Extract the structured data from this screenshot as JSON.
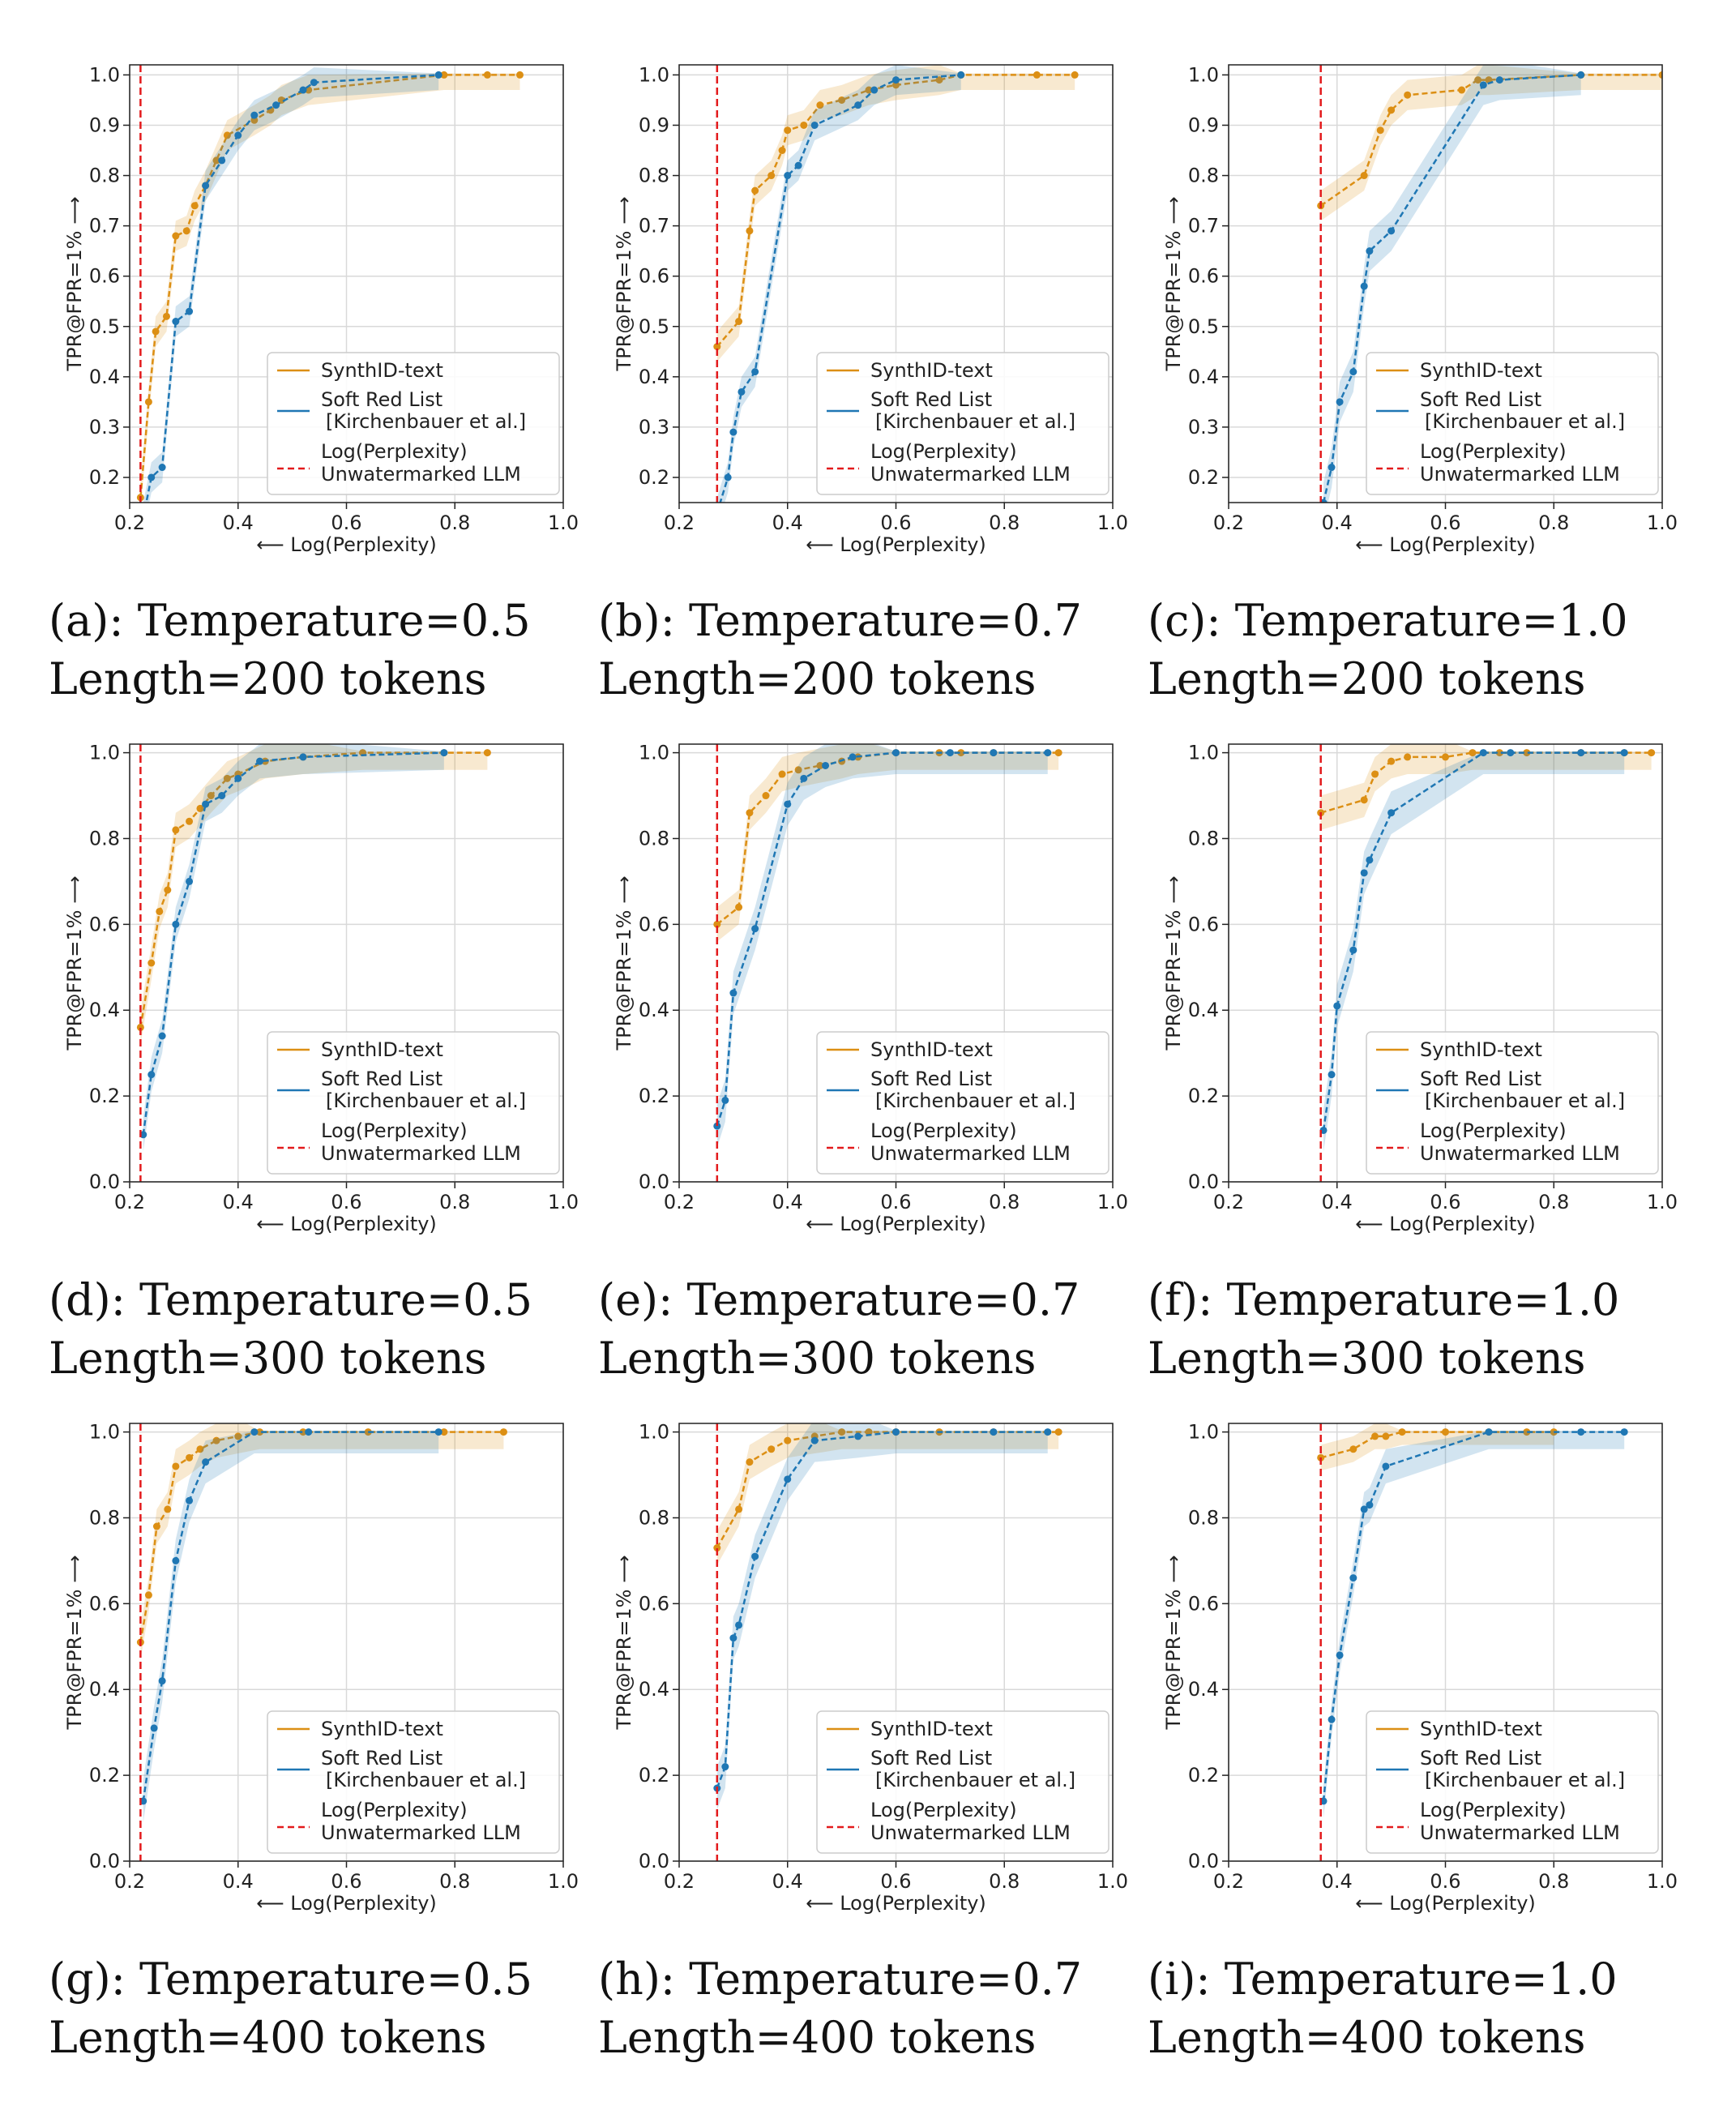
{
  "colors": {
    "synthid": "#dc8f14",
    "soft_red": "#1f77b4",
    "baseline": "#e31a1c",
    "grid": "#d9d9d9"
  },
  "legend": {
    "synthid": "SynthID-text",
    "soft_red": [
      "Soft Red List",
      "[Kirchenbauer et al.]"
    ],
    "baseline": [
      "Log(Perplexity)",
      "Unwatermarked LLM"
    ]
  },
  "chart_data": [
    {
      "type": "line",
      "caption": [
        "(a): Temperature=0.5",
        "Length=200 tokens"
      ],
      "xlabel": "⟵ Log(Perplexity)",
      "ylabel": "TPR@FPR=1% ⟶",
      "xlim": [
        0.2,
        1.0
      ],
      "ylim": [
        0.15,
        1.02
      ],
      "xticks": [
        "0.2",
        "0.4",
        "0.6",
        "0.8",
        "1.0"
      ],
      "yticks": [
        "0.2",
        "0.3",
        "0.4",
        "0.5",
        "0.6",
        "0.7",
        "0.8",
        "0.9",
        "1.0"
      ],
      "baseline_x": 0.22,
      "series": [
        {
          "name": "SynthID-text",
          "x": [
            0.22,
            0.235,
            0.248,
            0.268,
            0.285,
            0.305,
            0.32,
            0.34,
            0.36,
            0.38,
            0.43,
            0.46,
            0.48,
            0.53,
            0.78,
            0.86,
            0.92
          ],
          "y": [
            0.16,
            0.35,
            0.49,
            0.52,
            0.68,
            0.69,
            0.74,
            0.78,
            0.83,
            0.88,
            0.91,
            0.93,
            0.95,
            0.97,
            1.0,
            1.0,
            1.0
          ],
          "band": 0.03
        },
        {
          "name": "Soft Red List [Kirchenbauer et al.]",
          "x": [
            0.225,
            0.24,
            0.26,
            0.285,
            0.31,
            0.34,
            0.37,
            0.4,
            0.43,
            0.47,
            0.52,
            0.54,
            0.77
          ],
          "y": [
            0.12,
            0.2,
            0.22,
            0.51,
            0.53,
            0.78,
            0.83,
            0.88,
            0.92,
            0.94,
            0.97,
            0.985,
            1.0
          ],
          "band": 0.03
        }
      ]
    },
    {
      "type": "line",
      "caption": [
        "(b): Temperature=0.7",
        "Length=200 tokens"
      ],
      "xlabel": "⟵ Log(Perplexity)",
      "ylabel": "TPR@FPR=1% ⟶",
      "xlim": [
        0.2,
        1.0
      ],
      "ylim": [
        0.15,
        1.02
      ],
      "xticks": [
        "0.2",
        "0.4",
        "0.6",
        "0.8",
        "1.0"
      ],
      "yticks": [
        "0.2",
        "0.3",
        "0.4",
        "0.5",
        "0.6",
        "0.7",
        "0.8",
        "0.9",
        "1.0"
      ],
      "baseline_x": 0.27,
      "series": [
        {
          "name": "SynthID-text",
          "x": [
            0.27,
            0.31,
            0.33,
            0.34,
            0.37,
            0.39,
            0.4,
            0.43,
            0.46,
            0.5,
            0.55,
            0.6,
            0.68,
            0.72,
            0.86,
            0.93
          ],
          "y": [
            0.46,
            0.51,
            0.69,
            0.77,
            0.8,
            0.85,
            0.89,
            0.9,
            0.94,
            0.95,
            0.97,
            0.98,
            0.99,
            1.0,
            1.0,
            1.0
          ],
          "band": 0.03
        },
        {
          "name": "Soft Red List [Kirchenbauer et al.]",
          "x": [
            0.27,
            0.29,
            0.3,
            0.315,
            0.34,
            0.4,
            0.42,
            0.45,
            0.53,
            0.56,
            0.6,
            0.72
          ],
          "y": [
            0.13,
            0.2,
            0.29,
            0.37,
            0.41,
            0.8,
            0.82,
            0.9,
            0.94,
            0.97,
            0.99,
            1.0
          ],
          "band": 0.03
        }
      ]
    },
    {
      "type": "line",
      "caption": [
        "(c): Temperature=1.0",
        "Length=200 tokens"
      ],
      "xlabel": "⟵ Log(Perplexity)",
      "ylabel": "TPR@FPR=1% ⟶",
      "xlim": [
        0.2,
        1.0
      ],
      "ylim": [
        0.15,
        1.02
      ],
      "xticks": [
        "0.2",
        "0.4",
        "0.6",
        "0.8",
        "1.0"
      ],
      "yticks": [
        "0.2",
        "0.3",
        "0.4",
        "0.5",
        "0.6",
        "0.7",
        "0.8",
        "0.9",
        "1.0"
      ],
      "baseline_x": 0.37,
      "series": [
        {
          "name": "SynthID-text",
          "x": [
            0.37,
            0.45,
            0.48,
            0.5,
            0.53,
            0.63,
            0.66,
            0.68,
            0.85,
            1.0
          ],
          "y": [
            0.74,
            0.8,
            0.89,
            0.93,
            0.96,
            0.97,
            0.99,
            0.99,
            1.0,
            1.0
          ],
          "band": 0.03
        },
        {
          "name": "Soft Red List [Kirchenbauer et al.]",
          "x": [
            0.375,
            0.39,
            0.405,
            0.43,
            0.45,
            0.46,
            0.5,
            0.67,
            0.7,
            0.85
          ],
          "y": [
            0.15,
            0.22,
            0.35,
            0.41,
            0.58,
            0.65,
            0.69,
            0.98,
            0.99,
            1.0
          ],
          "band": 0.04
        }
      ]
    },
    {
      "type": "line",
      "caption": [
        "(d): Temperature=0.5",
        "Length=300 tokens"
      ],
      "xlabel": "⟵ Log(Perplexity)",
      "ylabel": "TPR@FPR=1% ⟶",
      "xlim": [
        0.2,
        1.0
      ],
      "ylim": [
        0.0,
        1.02
      ],
      "xticks": [
        "0.2",
        "0.4",
        "0.6",
        "0.8",
        "1.0"
      ],
      "yticks": [
        "0.0",
        "0.2",
        "0.4",
        "0.6",
        "0.8",
        "1.0"
      ],
      "baseline_x": 0.22,
      "series": [
        {
          "name": "SynthID-text",
          "x": [
            0.22,
            0.24,
            0.255,
            0.27,
            0.285,
            0.31,
            0.33,
            0.35,
            0.38,
            0.4,
            0.45,
            0.52,
            0.63,
            0.78,
            0.86
          ],
          "y": [
            0.36,
            0.51,
            0.63,
            0.68,
            0.82,
            0.84,
            0.87,
            0.9,
            0.94,
            0.95,
            0.98,
            0.99,
            1.0,
            1.0,
            1.0
          ],
          "band": 0.04
        },
        {
          "name": "Soft Red List [Kirchenbauer et al.]",
          "x": [
            0.225,
            0.24,
            0.26,
            0.285,
            0.31,
            0.34,
            0.37,
            0.4,
            0.44,
            0.52,
            0.78
          ],
          "y": [
            0.11,
            0.25,
            0.34,
            0.6,
            0.7,
            0.88,
            0.9,
            0.94,
            0.98,
            0.99,
            1.0
          ],
          "band": 0.04
        }
      ]
    },
    {
      "type": "line",
      "caption": [
        "(e): Temperature=0.7",
        "Length=300 tokens"
      ],
      "xlabel": "⟵ Log(Perplexity)",
      "ylabel": "TPR@FPR=1% ⟶",
      "xlim": [
        0.2,
        1.0
      ],
      "ylim": [
        0.0,
        1.02
      ],
      "xticks": [
        "0.2",
        "0.4",
        "0.6",
        "0.8",
        "1.0"
      ],
      "yticks": [
        "0.0",
        "0.2",
        "0.4",
        "0.6",
        "0.8",
        "1.0"
      ],
      "baseline_x": 0.27,
      "series": [
        {
          "name": "SynthID-text",
          "x": [
            0.27,
            0.31,
            0.33,
            0.36,
            0.39,
            0.42,
            0.46,
            0.5,
            0.53,
            0.6,
            0.68,
            0.72,
            0.78,
            0.9
          ],
          "y": [
            0.6,
            0.64,
            0.86,
            0.9,
            0.95,
            0.96,
            0.97,
            0.98,
            0.99,
            1.0,
            1.0,
            1.0,
            1.0,
            1.0
          ],
          "band": 0.04
        },
        {
          "name": "Soft Red List [Kirchenbauer et al.]",
          "x": [
            0.27,
            0.285,
            0.3,
            0.34,
            0.4,
            0.43,
            0.47,
            0.52,
            0.6,
            0.7,
            0.78,
            0.88
          ],
          "y": [
            0.13,
            0.19,
            0.44,
            0.59,
            0.88,
            0.94,
            0.97,
            0.99,
            1.0,
            1.0,
            1.0,
            1.0
          ],
          "band": 0.05
        }
      ]
    },
    {
      "type": "line",
      "caption": [
        "(f): Temperature=1.0",
        "Length=300 tokens"
      ],
      "xlabel": "⟵ Log(Perplexity)",
      "ylabel": "TPR@FPR=1% ⟶",
      "xlim": [
        0.2,
        1.0
      ],
      "ylim": [
        0.0,
        1.02
      ],
      "xticks": [
        "0.2",
        "0.4",
        "0.6",
        "0.8",
        "1.0"
      ],
      "yticks": [
        "0.0",
        "0.2",
        "0.4",
        "0.6",
        "0.8",
        "1.0"
      ],
      "baseline_x": 0.37,
      "series": [
        {
          "name": "SynthID-text",
          "x": [
            0.37,
            0.45,
            0.47,
            0.5,
            0.53,
            0.6,
            0.65,
            0.7,
            0.75,
            0.85,
            0.93,
            0.98
          ],
          "y": [
            0.86,
            0.89,
            0.95,
            0.98,
            0.99,
            0.99,
            1.0,
            1.0,
            1.0,
            1.0,
            1.0,
            1.0
          ],
          "band": 0.04
        },
        {
          "name": "Soft Red List [Kirchenbauer et al.]",
          "x": [
            0.375,
            0.39,
            0.4,
            0.43,
            0.45,
            0.46,
            0.5,
            0.67,
            0.72,
            0.85,
            0.93
          ],
          "y": [
            0.12,
            0.25,
            0.41,
            0.54,
            0.72,
            0.75,
            0.86,
            1.0,
            1.0,
            1.0,
            1.0
          ],
          "band": 0.05
        }
      ]
    },
    {
      "type": "line",
      "caption": [
        "(g): Temperature=0.5",
        "Length=400 tokens"
      ],
      "xlabel": "⟵ Log(Perplexity)",
      "ylabel": "TPR@FPR=1% ⟶",
      "xlim": [
        0.2,
        1.0
      ],
      "ylim": [
        0.0,
        1.02
      ],
      "xticks": [
        "0.2",
        "0.4",
        "0.6",
        "0.8",
        "1.0"
      ],
      "yticks": [
        "0.0",
        "0.2",
        "0.4",
        "0.6",
        "0.8",
        "1.0"
      ],
      "baseline_x": 0.22,
      "series": [
        {
          "name": "SynthID-text",
          "x": [
            0.22,
            0.235,
            0.25,
            0.27,
            0.285,
            0.31,
            0.33,
            0.36,
            0.4,
            0.44,
            0.52,
            0.64,
            0.78,
            0.89
          ],
          "y": [
            0.51,
            0.62,
            0.78,
            0.82,
            0.92,
            0.94,
            0.96,
            0.98,
            0.99,
            1.0,
            1.0,
            1.0,
            1.0,
            1.0
          ],
          "band": 0.04
        },
        {
          "name": "Soft Red List [Kirchenbauer et al.]",
          "x": [
            0.225,
            0.245,
            0.26,
            0.285,
            0.31,
            0.34,
            0.43,
            0.53,
            0.77
          ],
          "y": [
            0.14,
            0.31,
            0.42,
            0.7,
            0.84,
            0.93,
            1.0,
            1.0,
            1.0
          ],
          "band": 0.05
        }
      ]
    },
    {
      "type": "line",
      "caption": [
        "(h): Temperature=0.7",
        "Length=400 tokens"
      ],
      "xlabel": "⟵ Log(Perplexity)",
      "ylabel": "TPR@FPR=1% ⟶",
      "xlim": [
        0.2,
        1.0
      ],
      "ylim": [
        0.0,
        1.02
      ],
      "xticks": [
        "0.2",
        "0.4",
        "0.6",
        "0.8",
        "1.0"
      ],
      "yticks": [
        "0.0",
        "0.2",
        "0.4",
        "0.6",
        "0.8",
        "1.0"
      ],
      "baseline_x": 0.27,
      "series": [
        {
          "name": "SynthID-text",
          "x": [
            0.27,
            0.31,
            0.33,
            0.37,
            0.4,
            0.45,
            0.5,
            0.55,
            0.6,
            0.68,
            0.78,
            0.9
          ],
          "y": [
            0.73,
            0.82,
            0.93,
            0.96,
            0.98,
            0.99,
            1.0,
            1.0,
            1.0,
            1.0,
            1.0,
            1.0
          ],
          "band": 0.04
        },
        {
          "name": "Soft Red List [Kirchenbauer et al.]",
          "x": [
            0.27,
            0.285,
            0.3,
            0.31,
            0.34,
            0.4,
            0.45,
            0.53,
            0.6,
            0.78,
            0.88
          ],
          "y": [
            0.17,
            0.22,
            0.52,
            0.55,
            0.71,
            0.89,
            0.98,
            0.99,
            1.0,
            1.0,
            1.0
          ],
          "band": 0.05
        }
      ]
    },
    {
      "type": "line",
      "caption": [
        "(i): Temperature=1.0",
        "Length=400 tokens"
      ],
      "xlabel": "⟵ Log(Perplexity)",
      "ylabel": "TPR@FPR=1% ⟶",
      "xlim": [
        0.2,
        1.0
      ],
      "ylim": [
        0.0,
        1.02
      ],
      "xticks": [
        "0.2",
        "0.4",
        "0.6",
        "0.8",
        "1.0"
      ],
      "yticks": [
        "0.0",
        "0.2",
        "0.4",
        "0.6",
        "0.8",
        "1.0"
      ],
      "baseline_x": 0.37,
      "series": [
        {
          "name": "SynthID-text",
          "x": [
            0.37,
            0.43,
            0.47,
            0.49,
            0.52,
            0.6,
            0.68,
            0.75,
            0.8
          ],
          "y": [
            0.94,
            0.96,
            0.99,
            0.99,
            1.0,
            1.0,
            1.0,
            1.0,
            1.0
          ],
          "band": 0.03
        },
        {
          "name": "Soft Red List [Kirchenbauer et al.]",
          "x": [
            0.375,
            0.39,
            0.405,
            0.43,
            0.45,
            0.46,
            0.49,
            0.68,
            0.85,
            0.93
          ],
          "y": [
            0.14,
            0.33,
            0.48,
            0.66,
            0.82,
            0.83,
            0.92,
            1.0,
            1.0,
            1.0
          ],
          "band": 0.04
        }
      ]
    }
  ]
}
